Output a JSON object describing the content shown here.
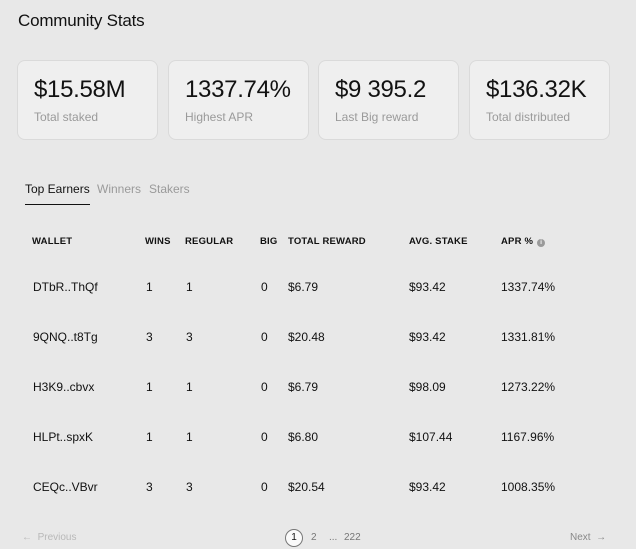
{
  "page": {
    "title": "Community Stats"
  },
  "stats": [
    {
      "value": "$15.58M",
      "label": "Total staked"
    },
    {
      "value": "1337.74%",
      "label": "Highest APR"
    },
    {
      "value": "$9 395.2",
      "label": "Last Big reward"
    },
    {
      "value": "$136.32K",
      "label": "Total distributed"
    }
  ],
  "tabs": [
    {
      "label": "Top Earners",
      "active": true
    },
    {
      "label": "Winners",
      "active": false
    },
    {
      "label": "Stakers",
      "active": false
    }
  ],
  "table": {
    "columns": {
      "wallet": "WALLET",
      "wins": "WINS",
      "regular": "REGULAR",
      "big": "BIG",
      "total_reward": "TOTAL REWARD",
      "avg_stake": "AVG. STAKE",
      "apr": "APR %"
    },
    "rows": [
      {
        "wallet": "DTbR..ThQf",
        "wins": "1",
        "regular": "1",
        "big": "0",
        "total_reward": "$6.79",
        "avg_stake": "$93.42",
        "apr": "1337.74%"
      },
      {
        "wallet": "9QNQ..t8Tg",
        "wins": "3",
        "regular": "3",
        "big": "0",
        "total_reward": "$20.48",
        "avg_stake": "$93.42",
        "apr": "1331.81%"
      },
      {
        "wallet": "H3K9..cbvx",
        "wins": "1",
        "regular": "1",
        "big": "0",
        "total_reward": "$6.79",
        "avg_stake": "$98.09",
        "apr": "1273.22%"
      },
      {
        "wallet": "HLPt..spxK",
        "wins": "1",
        "regular": "1",
        "big": "0",
        "total_reward": "$6.80",
        "avg_stake": "$107.44",
        "apr": "1167.96%"
      },
      {
        "wallet": "CEQc..VBvr",
        "wins": "3",
        "regular": "3",
        "big": "0",
        "total_reward": "$20.54",
        "avg_stake": "$93.42",
        "apr": "1008.35%"
      }
    ]
  },
  "pagination": {
    "previous_label": "Previous",
    "next_label": "Next",
    "current_page": "1",
    "page_2": "2",
    "ellipsis": "...",
    "last_page": "222"
  },
  "icons": {
    "apr_info": "info-icon",
    "prev_arrow": "arrow-left-icon",
    "next_arrow": "arrow-right-icon"
  }
}
